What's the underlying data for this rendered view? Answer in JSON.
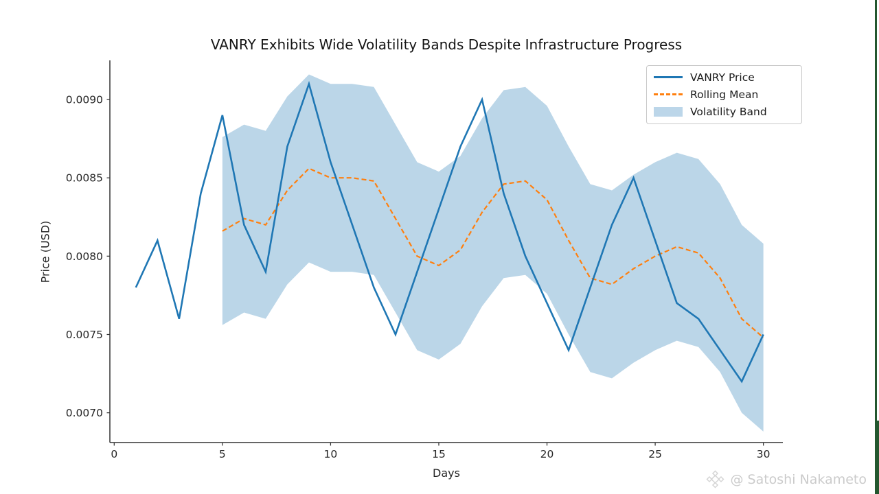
{
  "watermark": {
    "text": "@ Satoshi Nakameto",
    "color": "#cbcbcb",
    "icon": "diamond-lattice-icon"
  },
  "colors": {
    "price_line": "#1f77b4",
    "rolling_mean_line": "#ff7f0e",
    "volatility_band_fill": "rgba(31,119,180,0.30)",
    "legend_patch": "#bcd6e9",
    "axis": "#333333",
    "tick_text": "#262626",
    "edge_artifact_green": "#24572f"
  },
  "chart_data": {
    "type": "line",
    "title": "VANRY Exhibits Wide Volatility Bands Despite Infrastructure Progress",
    "xlabel": "Days",
    "ylabel": "Price (USD)",
    "xlim": [
      -0.2,
      30.9
    ],
    "ylim": [
      0.00681,
      0.00925
    ],
    "x_ticks": [
      0,
      5,
      10,
      15,
      20,
      25,
      30
    ],
    "y_ticks": [
      0.007,
      0.0075,
      0.008,
      0.0085,
      0.009
    ],
    "y_tick_labels": [
      "0.0070",
      "0.0075",
      "0.0080",
      "0.0085",
      "0.0090"
    ],
    "grid": false,
    "legend_position": "upper right",
    "series": [
      {
        "name": "VANRY Price",
        "kind": "line",
        "style": "solid",
        "color": "#1f77b4",
        "x": [
          1,
          2,
          3,
          4,
          5,
          6,
          7,
          8,
          9,
          10,
          11,
          12,
          13,
          14,
          15,
          16,
          17,
          18,
          19,
          20,
          21,
          22,
          23,
          24,
          25,
          26,
          27,
          28,
          29,
          30
        ],
        "y": [
          0.0078,
          0.0081,
          0.0076,
          0.0084,
          0.0089,
          0.0082,
          0.0079,
          0.0087,
          0.0091,
          0.0086,
          0.0082,
          0.0078,
          0.0075,
          0.0079,
          0.0083,
          0.0087,
          0.009,
          0.0084,
          0.008,
          0.0077,
          0.0074,
          0.0078,
          0.0082,
          0.0085,
          0.0081,
          0.0077,
          0.0076,
          0.0074,
          0.0072,
          0.0075
        ]
      },
      {
        "name": "Rolling Mean",
        "kind": "line",
        "style": "dashed",
        "color": "#ff7f0e",
        "window": 5,
        "x": [
          5,
          6,
          7,
          8,
          9,
          10,
          11,
          12,
          13,
          14,
          15,
          16,
          17,
          18,
          19,
          20,
          21,
          22,
          23,
          24,
          25,
          26,
          27,
          28,
          29,
          30
        ],
        "y": [
          0.00816,
          0.00824,
          0.0082,
          0.00842,
          0.00856,
          0.0085,
          0.0085,
          0.00848,
          0.00824,
          0.008,
          0.00794,
          0.00804,
          0.00828,
          0.00846,
          0.00848,
          0.00836,
          0.0081,
          0.00786,
          0.00782,
          0.00792,
          0.008,
          0.00806,
          0.00802,
          0.00786,
          0.0076,
          0.00748
        ]
      },
      {
        "name": "Volatility Band",
        "kind": "band",
        "color": "rgba(31,119,180,0.30)",
        "x": [
          5,
          6,
          7,
          8,
          9,
          10,
          11,
          12,
          13,
          14,
          15,
          16,
          17,
          18,
          19,
          20,
          21,
          22,
          23,
          24,
          25,
          26,
          27,
          28,
          29,
          30
        ],
        "upper": [
          0.00876,
          0.00884,
          0.0088,
          0.00902,
          0.00916,
          0.0091,
          0.0091,
          0.00908,
          0.00884,
          0.0086,
          0.00854,
          0.00864,
          0.00888,
          0.00906,
          0.00908,
          0.00896,
          0.0087,
          0.00846,
          0.00842,
          0.00852,
          0.0086,
          0.00866,
          0.00862,
          0.00846,
          0.0082,
          0.00808
        ],
        "lower": [
          0.00756,
          0.00764,
          0.0076,
          0.00782,
          0.00796,
          0.0079,
          0.0079,
          0.00788,
          0.00764,
          0.0074,
          0.00734,
          0.00744,
          0.00768,
          0.00786,
          0.00788,
          0.00776,
          0.0075,
          0.00726,
          0.00722,
          0.00732,
          0.0074,
          0.00746,
          0.00742,
          0.00726,
          0.007,
          0.00688
        ]
      }
    ]
  }
}
